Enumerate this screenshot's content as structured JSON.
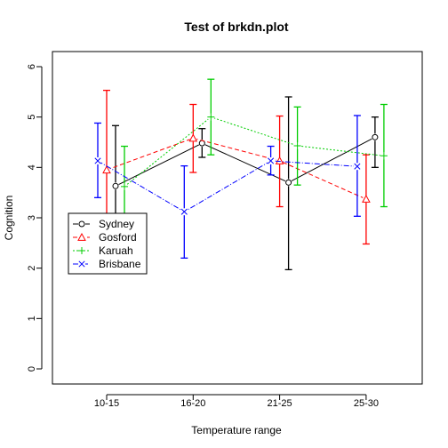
{
  "chart_data": {
    "type": "line",
    "title": "Test of brkdn.plot",
    "xlabel": "Temperature range",
    "ylabel": "Cognition",
    "categories": [
      "10-15",
      "16-20",
      "21-25",
      "25-30"
    ],
    "yticks": [
      "0",
      "1",
      "2",
      "3",
      "4",
      "5",
      "6"
    ],
    "ylim": [
      -0.3,
      6.3
    ],
    "grid": false,
    "legend_position": "left",
    "series": [
      {
        "name": "Sydney",
        "color": "#000000",
        "marker": "circle",
        "line_style": "solid",
        "values": [
          3.63,
          4.48,
          3.7,
          4.6
        ],
        "err_low": [
          2.2,
          4.2,
          1.97,
          4.0
        ],
        "err_high": [
          4.83,
          4.77,
          5.4,
          5.0
        ]
      },
      {
        "name": "Gosford",
        "color": "#ff0000",
        "marker": "triangle",
        "line_style": "dashed",
        "values": [
          3.95,
          4.58,
          4.13,
          3.37
        ],
        "err_low": [
          2.35,
          3.9,
          3.22,
          2.48
        ],
        "err_high": [
          5.53,
          5.25,
          5.02,
          4.25
        ]
      },
      {
        "name": "Karuah",
        "color": "#00cd00",
        "marker": "plus",
        "line_style": "dotted",
        "values": [
          3.62,
          5.0,
          4.43,
          4.23
        ],
        "err_low": [
          2.8,
          4.25,
          3.65,
          3.22
        ],
        "err_high": [
          4.42,
          5.75,
          5.2,
          5.25
        ]
      },
      {
        "name": "Brisbane",
        "color": "#0000ff",
        "marker": "cross",
        "line_style": "dashdot",
        "values": [
          4.13,
          3.12,
          4.13,
          4.02
        ],
        "err_low": [
          3.4,
          2.2,
          3.85,
          3.03
        ],
        "err_high": [
          4.88,
          4.03,
          4.42,
          5.03
        ]
      }
    ]
  }
}
